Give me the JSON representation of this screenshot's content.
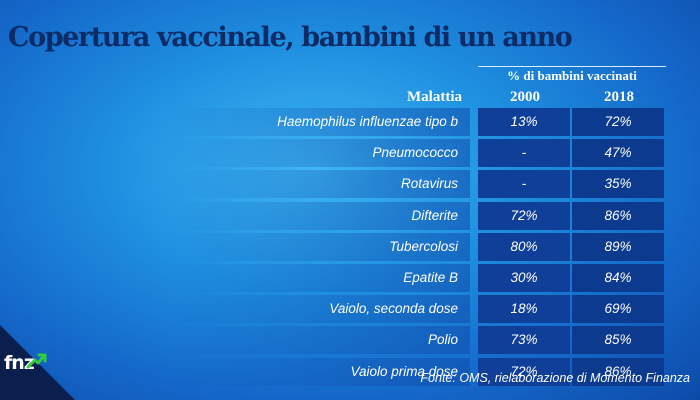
{
  "title": "Copertura vaccinale, bambini di un anno",
  "source": "Fonte: OMS, rielaborazione di Momento Finanza",
  "logo": "fnz",
  "colors": {
    "title": "#0d2b66",
    "cell_bg": "#0f3f98",
    "logo_arrow": "#2ecc40"
  },
  "chart_data": {
    "type": "table",
    "group_header": "% di bambini vaccinati",
    "columns": [
      "Malattia",
      "2000",
      "2018"
    ],
    "rows": [
      {
        "disease": "Haemophilus influenzae tipo b",
        "y2000": "13%",
        "y2018": "72%"
      },
      {
        "disease": "Pneumococco",
        "y2000": "-",
        "y2018": "47%"
      },
      {
        "disease": "Rotavirus",
        "y2000": "-",
        "y2018": "35%"
      },
      {
        "disease": "Difterite",
        "y2000": "72%",
        "y2018": "86%"
      },
      {
        "disease": "Tubercolosi",
        "y2000": "80%",
        "y2018": "89%"
      },
      {
        "disease": "Epatite B",
        "y2000": "30%",
        "y2018": "84%"
      },
      {
        "disease": "Vaiolo, seconda dose",
        "y2000": "18%",
        "y2018": "69%"
      },
      {
        "disease": "Polio",
        "y2000": "73%",
        "y2018": "85%"
      },
      {
        "disease": "Vaiolo prima dose",
        "y2000": "72%",
        "y2018": "86%"
      }
    ]
  }
}
